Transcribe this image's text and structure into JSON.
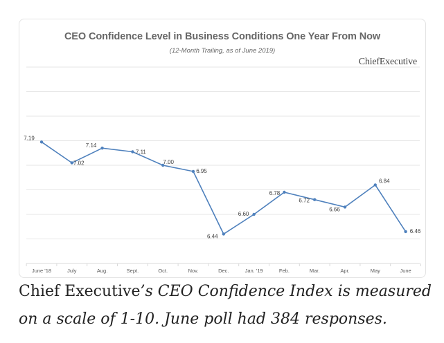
{
  "chart_data": {
    "type": "line",
    "title": "CEO Confidence Level in Business Conditions One Year From Now",
    "subtitle": "(12-Month Trailing, as of June 2019)",
    "categories": [
      "June '18",
      "July",
      "Aug.",
      "Sept.",
      "Oct.",
      "Nov.",
      "Dec.",
      "Jan. '19",
      "Feb.",
      "Mar.",
      "Apr.",
      "May",
      "June"
    ],
    "series": [
      {
        "values": [
          7.19,
          7.02,
          7.14,
          7.11,
          7.0,
          6.95,
          6.44,
          6.6,
          6.78,
          6.72,
          6.66,
          6.84,
          6.46
        ],
        "labels": [
          "7.19",
          "7.02",
          "7.14",
          "7.11",
          "7.00",
          "6.95",
          "6.44",
          "6.60",
          "6.78",
          "6.72",
          "6.66",
          "6.84",
          "6.46"
        ],
        "color": "#4f81bd"
      }
    ],
    "xlabel": "",
    "ylabel": "",
    "ylim": [
      6.2,
      7.8
    ],
    "y_axis_labels_shown": false,
    "grid": true,
    "legend": "none"
  },
  "brand": "ChiefExecutive",
  "caption": {
    "line1_roman": "Chief Executive",
    "line1_italic": "’s CEO Confidence Index is measured",
    "line2_italic": "on a scale of 1-10. June poll had 384 responses."
  },
  "colors": {
    "line": "#4f81bd",
    "grid": "#e6e6e6",
    "text": "#444444"
  }
}
